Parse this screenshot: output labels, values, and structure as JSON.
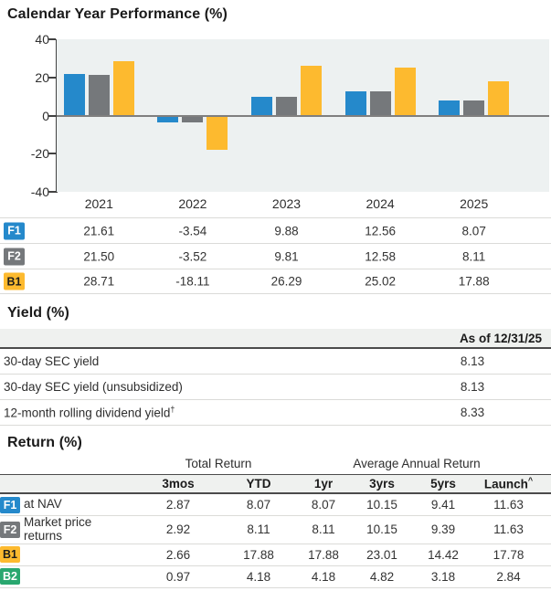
{
  "chart_data": {
    "type": "bar",
    "title": "Calendar Year Performance (%)",
    "categories": [
      "2021",
      "2022",
      "2023",
      "2024",
      "2025"
    ],
    "series": [
      {
        "name": "F1",
        "color": "#2589CB",
        "text_color": "#FFFFFF",
        "values": [
          21.61,
          -3.54,
          9.88,
          12.56,
          8.07
        ]
      },
      {
        "name": "F2",
        "color": "#75787B",
        "text_color": "#FFFFFF",
        "values": [
          21.5,
          -3.52,
          9.81,
          12.58,
          8.11
        ]
      },
      {
        "name": "B1",
        "color": "#FDBA2F",
        "text_color": "#1D1D1B",
        "values": [
          28.71,
          -18.11,
          26.29,
          25.02,
          17.88
        ]
      }
    ],
    "value_labels": [
      [
        "21.61",
        "-3.54",
        "9.88",
        "12.56",
        "8.07"
      ],
      [
        "21.50",
        "-3.52",
        "9.81",
        "12.58",
        "8.11"
      ],
      [
        "28.71",
        "-18.11",
        "26.29",
        "25.02",
        "17.88"
      ]
    ],
    "ylim": [
      -40,
      40
    ],
    "yticks": [
      40,
      20,
      0,
      -20,
      -40
    ],
    "grid": false,
    "plot_bg": "#EDF1F1",
    "legend_position": "left-of-table-rows"
  },
  "yield_section": {
    "title": "Yield (%)",
    "as_of_label": "As of 12/31/25",
    "rows": [
      {
        "label": "30-day SEC yield",
        "sup": "",
        "value": "8.13"
      },
      {
        "label": "30-day SEC yield (unsubsidized)",
        "sup": "",
        "value": "8.13"
      },
      {
        "label": "12-month rolling dividend yield",
        "sup": "†",
        "value": "8.33"
      }
    ]
  },
  "return_section": {
    "title": "Return (%)",
    "group_headers": [
      {
        "label": "Total Return"
      },
      {
        "label": "Average Annual Return"
      }
    ],
    "columns": [
      {
        "label": "3mos",
        "sup": ""
      },
      {
        "label": "YTD",
        "sup": ""
      },
      {
        "label": "1yr",
        "sup": ""
      },
      {
        "label": "3yrs",
        "sup": ""
      },
      {
        "label": "5yrs",
        "sup": ""
      },
      {
        "label": "Launch",
        "sup": "^"
      }
    ],
    "rows": [
      {
        "badge": "F1",
        "badge_color": "#2589CB",
        "badge_text_color": "#FFFFFF",
        "label": "at NAV",
        "values": [
          "2.87",
          "8.07",
          "8.07",
          "10.15",
          "9.41",
          "11.63"
        ]
      },
      {
        "badge": "F2",
        "badge_color": "#75787B",
        "badge_text_color": "#FFFFFF",
        "label": "Market price returns",
        "values": [
          "2.92",
          "8.11",
          "8.11",
          "10.15",
          "9.39",
          "11.63"
        ]
      },
      {
        "badge": "B1",
        "badge_color": "#FDBA2F",
        "badge_text_color": "#1D1D1B",
        "label": "",
        "values": [
          "2.66",
          "17.88",
          "17.88",
          "23.01",
          "14.42",
          "17.78"
        ]
      },
      {
        "badge": "B2",
        "badge_color": "#29A76F",
        "badge_text_color": "#FFFFFF",
        "label": "",
        "values": [
          "0.97",
          "4.18",
          "4.18",
          "4.82",
          "3.18",
          "2.84"
        ]
      }
    ]
  }
}
